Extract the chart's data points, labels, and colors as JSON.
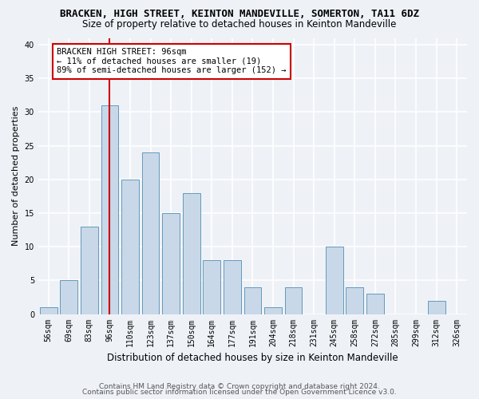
{
  "title": "BRACKEN, HIGH STREET, KEINTON MANDEVILLE, SOMERTON, TA11 6DZ",
  "subtitle": "Size of property relative to detached houses in Keinton Mandeville",
  "xlabel": "Distribution of detached houses by size in Keinton Mandeville",
  "ylabel": "Number of detached properties",
  "categories": [
    "56sqm",
    "69sqm",
    "83sqm",
    "96sqm",
    "110sqm",
    "123sqm",
    "137sqm",
    "150sqm",
    "164sqm",
    "177sqm",
    "191sqm",
    "204sqm",
    "218sqm",
    "231sqm",
    "245sqm",
    "258sqm",
    "272sqm",
    "285sqm",
    "299sqm",
    "312sqm",
    "326sqm"
  ],
  "values": [
    1,
    5,
    13,
    31,
    20,
    24,
    15,
    18,
    8,
    8,
    4,
    1,
    4,
    0,
    10,
    4,
    3,
    0,
    0,
    2,
    0
  ],
  "bar_color": "#c8d8e8",
  "bar_edge_color": "#6699bb",
  "vline_x_idx": 3,
  "vline_color": "#cc0000",
  "annotation_text": "BRACKEN HIGH STREET: 96sqm\n← 11% of detached houses are smaller (19)\n89% of semi-detached houses are larger (152) →",
  "annotation_box_color": "white",
  "annotation_box_edge_color": "#cc0000",
  "ylim": [
    0,
    41
  ],
  "yticks": [
    0,
    5,
    10,
    15,
    20,
    25,
    30,
    35,
    40
  ],
  "footer1": "Contains HM Land Registry data © Crown copyright and database right 2024.",
  "footer2": "Contains public sector information licensed under the Open Government Licence v3.0.",
  "bg_color": "#eef2f7",
  "plot_bg_color": "#eef2f7",
  "grid_color": "#ffffff",
  "title_fontsize": 9,
  "subtitle_fontsize": 8.5,
  "xlabel_fontsize": 8.5,
  "ylabel_fontsize": 8,
  "tick_fontsize": 7,
  "annotation_fontsize": 7.5,
  "footer_fontsize": 6.5
}
